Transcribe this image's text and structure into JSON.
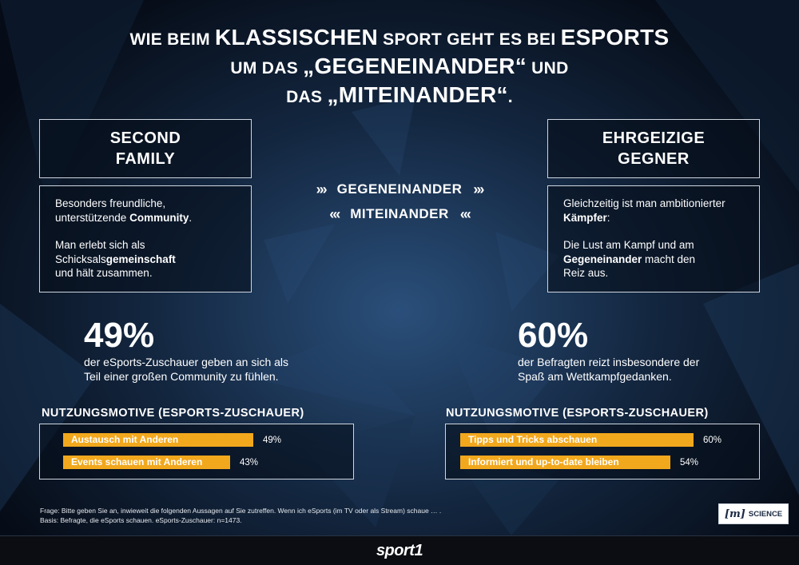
{
  "headline": {
    "line1_pre_small": "Wie beim ",
    "line1_big": "klassischen",
    "line1_mid_small": " Sport geht es bei ",
    "line1_big2": "eSports",
    "line2_pre_small": "um das ",
    "line2_big": "„Gegeneinander“",
    "line2_post_small": " und",
    "line3_pre_small": "das ",
    "line3_big": "„Miteinander“",
    "line3_post_small": "."
  },
  "left_box": {
    "title_line1": "SECOND",
    "title_line2": "FAMILY",
    "p1_a": "Besonders freundliche,",
    "p1_b": "unterstützende ",
    "p1_bold": "Community",
    "p1_end": ".",
    "p2_a": "Man erlebt sich als",
    "p2_b": "Schicksals",
    "p2_bold": "gemeinschaft",
    "p2_c": "und hält zusammen."
  },
  "right_box": {
    "title_line1": "EHRGEIZIGE",
    "title_line2": "GEGNER",
    "p1_a": "Gleichzeitig ist man ambitionierter",
    "p1_bold": "Kämpfer",
    "p1_end": ":",
    "p2_a": "Die Lust am Kampf und am",
    "p2_bold": "Gegeneinander",
    "p2_b": " macht den",
    "p2_c": "Reiz aus."
  },
  "center": {
    "chev_right": "›››",
    "chev_left": "‹‹‹",
    "gegeneinander": "GEGENEINANDER",
    "miteinander": "MITEINANDER"
  },
  "stats": {
    "left_value": "49%",
    "left_text_1": "der eSports-Zuschauer  geben an sich als",
    "left_text_2": "Teil einer großen Community zu fühlen.",
    "right_value": "60%",
    "right_text_1": "der Befragten reizt insbesondere der",
    "right_text_2": "Spaß am Wettkampfgedanken."
  },
  "motives_left": {
    "title": "NUTZUNGSMOTIVE (ESPORTS-ZUSCHAUER)",
    "bars": [
      {
        "label": "Austausch mit Anderen",
        "value": 49,
        "value_label": "49%"
      },
      {
        "label": "Events schauen mit Anderen",
        "value": 43,
        "value_label": "43%"
      }
    ]
  },
  "motives_right": {
    "title": "NUTZUNGSMOTIVE (ESPORTS-ZUSCHAUER)",
    "bars": [
      {
        "label": "Tipps und Tricks abschauen",
        "value": 60,
        "value_label": "60%"
      },
      {
        "label": "Informiert und up-to-date bleiben",
        "value": 54,
        "value_label": "54%"
      }
    ]
  },
  "footnote": {
    "line1": "Frage: Bitte geben Sie an, inwieweit die folgenden Aussagen auf Sie zutreffen. Wenn ich eSports (im TV oder als Stream) schaue … .",
    "line2": "Basis: Befragte, die eSports schauen. eSports-Zuschauer: n=1473."
  },
  "mscience": {
    "mark": "[m]",
    "label": "SCIENCE"
  },
  "footer": {
    "logo": "sport1"
  },
  "colors": {
    "bar": "#f2a81d",
    "background": "#0b1628"
  }
}
